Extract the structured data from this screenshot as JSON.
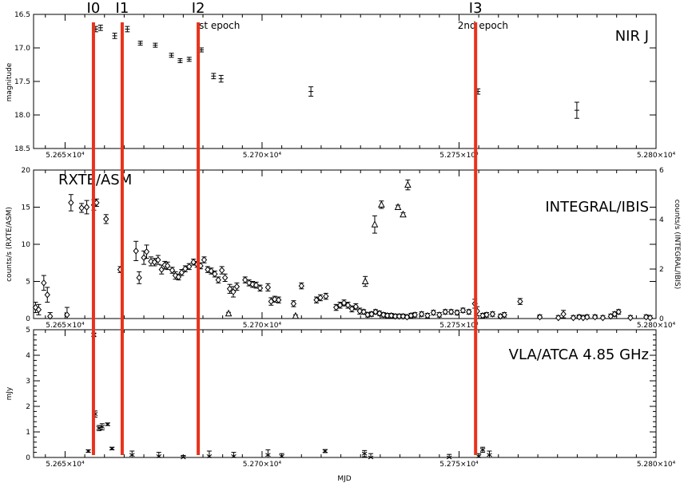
{
  "colors": {
    "marker_line": "#e8321c",
    "axis": "#000000",
    "background": "#ffffff"
  },
  "figure": {
    "markers": [
      {
        "label": "I0",
        "mjd": 52657.2
      },
      {
        "label": "I1",
        "mjd": 52664.5
      },
      {
        "label": "I2",
        "mjd": 52683.8
      },
      {
        "label": "I3",
        "mjd": 52754.2
      }
    ],
    "epoch_labels": [
      {
        "text": "st epoch",
        "mjd": 52684.0
      },
      {
        "text": "2nd epoch",
        "mjd": 52752.0
      }
    ],
    "x_label": "MJD"
  },
  "chart_data": [
    {
      "type": "scatter",
      "panel": "nir",
      "title": "NIR J",
      "ylabel": "magnitude",
      "ylim": [
        18.5,
        16.5
      ],
      "y_inverted": true,
      "xlim": [
        52642,
        52800
      ],
      "x_ticks": [
        "5.265×10⁴",
        "5.270×10⁴",
        "5.275×10⁴",
        "5.280×10⁴"
      ],
      "y_ticks": [
        "16.5",
        "17.0",
        "17.5",
        "18.0",
        "18.5"
      ],
      "series": [
        {
          "marker": "errorbar",
          "points": [
            {
              "x": 52657.8,
              "y": 16.72,
              "err": 0.04
            },
            {
              "x": 52659.0,
              "y": 16.7,
              "err": 0.04
            },
            {
              "x": 52662.6,
              "y": 16.82,
              "err": 0.04
            },
            {
              "x": 52665.8,
              "y": 16.72,
              "err": 0.04
            },
            {
              "x": 52669.1,
              "y": 16.93,
              "err": 0.03
            },
            {
              "x": 52672.9,
              "y": 16.96,
              "err": 0.03
            },
            {
              "x": 52677.0,
              "y": 17.11,
              "err": 0.03
            },
            {
              "x": 52679.2,
              "y": 17.19,
              "err": 0.03
            },
            {
              "x": 52681.5,
              "y": 17.17,
              "err": 0.03
            },
            {
              "x": 52684.6,
              "y": 17.03,
              "err": 0.03
            },
            {
              "x": 52687.7,
              "y": 17.42,
              "err": 0.04
            },
            {
              "x": 52689.6,
              "y": 17.46,
              "err": 0.05
            },
            {
              "x": 52712.4,
              "y": 17.65,
              "err": 0.07
            },
            {
              "x": 52754.8,
              "y": 17.65,
              "err": 0.04
            },
            {
              "x": 52779.9,
              "y": 17.93,
              "err": 0.12
            }
          ]
        }
      ]
    },
    {
      "type": "scatter",
      "panel": "xray",
      "title": "RXTE/ASM",
      "title2": "INTEGRAL/IBIS",
      "ylabel": "counts/s (RXTE/ASM)",
      "y2label": "counts/s (INTEGRAL/IBIS)",
      "ylim": [
        0,
        20
      ],
      "y2lim": [
        0,
        6
      ],
      "xlim": [
        52642,
        52800
      ],
      "x_ticks": [
        "5.265×10⁴",
        "5.270×10⁴",
        "5.275×10⁴",
        "5.280×10⁴"
      ],
      "y_ticks": [
        "0",
        "5",
        "10",
        "15",
        "20"
      ],
      "y2_ticks": [
        "0",
        "2",
        "4",
        "6"
      ],
      "series": [
        {
          "name": "RXTE/ASM",
          "marker": "diamond",
          "points": [
            {
              "x": 52642.5,
              "y": 1.5,
              "err": 0.7
            },
            {
              "x": 52643.3,
              "y": 1.2,
              "err": 0.7
            },
            {
              "x": 52644.6,
              "y": 4.8,
              "err": 1.0
            },
            {
              "x": 52645.5,
              "y": 3.2,
              "err": 1.0
            },
            {
              "x": 52646.2,
              "y": 0.3,
              "err": 0.5
            },
            {
              "x": 52650.5,
              "y": 0.5,
              "err": 1.0
            },
            {
              "x": 52651.5,
              "y": 15.6,
              "err": 1.1
            },
            {
              "x": 52654.2,
              "y": 14.9,
              "err": 0.6
            },
            {
              "x": 52655.5,
              "y": 15.0,
              "err": 0.9
            },
            {
              "x": 52657.3,
              "y": 15.3,
              "err": 0.7
            },
            {
              "x": 52658.0,
              "y": 15.6,
              "err": 0.5
            },
            {
              "x": 52660.4,
              "y": 13.4,
              "err": 0.6
            },
            {
              "x": 52664.0,
              "y": 6.6,
              "err": 0.4
            },
            {
              "x": 52668.0,
              "y": 9.1,
              "err": 1.3
            },
            {
              "x": 52668.8,
              "y": 5.5,
              "err": 0.8
            },
            {
              "x": 52670.0,
              "y": 8.2,
              "err": 0.9
            },
            {
              "x": 52670.7,
              "y": 9.0,
              "err": 0.9
            },
            {
              "x": 52671.8,
              "y": 7.7,
              "err": 0.6
            },
            {
              "x": 52672.7,
              "y": 7.6,
              "err": 0.5
            },
            {
              "x": 52673.6,
              "y": 7.9,
              "err": 0.6
            },
            {
              "x": 52674.5,
              "y": 6.6,
              "err": 0.6
            },
            {
              "x": 52675.3,
              "y": 7.2,
              "err": 0.5
            },
            {
              "x": 52676.0,
              "y": 7.1,
              "err": 0.5
            },
            {
              "x": 52677.2,
              "y": 6.5,
              "err": 0.4
            },
            {
              "x": 52678.0,
              "y": 5.8,
              "err": 0.5
            },
            {
              "x": 52678.8,
              "y": 5.6,
              "err": 0.4
            },
            {
              "x": 52679.6,
              "y": 6.2,
              "err": 0.4
            },
            {
              "x": 52680.5,
              "y": 6.7,
              "err": 0.4
            },
            {
              "x": 52681.5,
              "y": 7.0,
              "err": 0.4
            },
            {
              "x": 52682.6,
              "y": 7.6,
              "err": 0.4
            },
            {
              "x": 52683.5,
              "y": 7.3,
              "err": 0.4
            },
            {
              "x": 52684.4,
              "y": 7.1,
              "err": 0.4
            },
            {
              "x": 52685.3,
              "y": 7.9,
              "err": 0.4
            },
            {
              "x": 52686.2,
              "y": 6.6,
              "err": 0.4
            },
            {
              "x": 52687.1,
              "y": 6.4,
              "err": 0.4
            },
            {
              "x": 52688.0,
              "y": 6.0,
              "err": 0.4
            },
            {
              "x": 52688.9,
              "y": 5.2,
              "err": 0.4
            },
            {
              "x": 52689.8,
              "y": 6.5,
              "err": 0.5
            },
            {
              "x": 52690.6,
              "y": 5.5,
              "err": 0.5
            },
            {
              "x": 52691.8,
              "y": 4.0,
              "err": 0.6
            },
            {
              "x": 52692.7,
              "y": 3.6,
              "err": 0.7
            },
            {
              "x": 52693.6,
              "y": 4.3,
              "err": 0.5
            },
            {
              "x": 52695.7,
              "y": 5.2,
              "err": 0.4
            },
            {
              "x": 52696.7,
              "y": 4.8,
              "err": 0.4
            },
            {
              "x": 52697.6,
              "y": 4.6,
              "err": 0.4
            },
            {
              "x": 52698.5,
              "y": 4.5,
              "err": 0.4
            },
            {
              "x": 52699.5,
              "y": 4.1,
              "err": 0.4
            },
            {
              "x": 52701.5,
              "y": 4.2,
              "err": 0.5
            },
            {
              "x": 52702.3,
              "y": 2.3,
              "err": 0.5
            },
            {
              "x": 52703.2,
              "y": 2.6,
              "err": 0.4
            },
            {
              "x": 52704.2,
              "y": 2.5,
              "err": 0.4
            },
            {
              "x": 52708.0,
              "y": 2.0,
              "err": 0.4
            },
            {
              "x": 52710.0,
              "y": 4.4,
              "err": 0.4
            },
            {
              "x": 52713.8,
              "y": 2.5,
              "err": 0.4
            },
            {
              "x": 52714.8,
              "y": 2.8,
              "err": 0.4
            },
            {
              "x": 52716.2,
              "y": 3.0,
              "err": 0.4
            },
            {
              "x": 52718.8,
              "y": 1.5,
              "err": 0.4
            },
            {
              "x": 52719.8,
              "y": 1.8,
              "err": 0.4
            },
            {
              "x": 52720.8,
              "y": 2.1,
              "err": 0.4
            },
            {
              "x": 52721.8,
              "y": 1.8,
              "err": 0.4
            },
            {
              "x": 52722.8,
              "y": 1.3,
              "err": 0.4
            },
            {
              "x": 52723.8,
              "y": 1.6,
              "err": 0.4
            },
            {
              "x": 52724.8,
              "y": 1.0,
              "err": 0.4
            },
            {
              "x": 52725.8,
              "y": 0.9,
              "err": 0.3
            },
            {
              "x": 52726.8,
              "y": 0.5,
              "err": 0.3
            },
            {
              "x": 52727.8,
              "y": 0.6,
              "err": 0.3
            },
            {
              "x": 52728.8,
              "y": 0.9,
              "err": 0.3
            },
            {
              "x": 52729.8,
              "y": 0.7,
              "err": 0.3
            },
            {
              "x": 52730.8,
              "y": 0.5,
              "err": 0.3
            },
            {
              "x": 52731.8,
              "y": 0.4,
              "err": 0.3
            },
            {
              "x": 52732.8,
              "y": 0.4,
              "err": 0.3
            },
            {
              "x": 52733.8,
              "y": 0.3,
              "err": 0.3
            },
            {
              "x": 52734.8,
              "y": 0.3,
              "err": 0.3
            },
            {
              "x": 52735.8,
              "y": 0.3,
              "err": 0.3
            },
            {
              "x": 52736.8,
              "y": 0.2,
              "err": 0.3
            },
            {
              "x": 52737.8,
              "y": 0.4,
              "err": 0.3
            },
            {
              "x": 52738.8,
              "y": 0.5,
              "err": 0.3
            },
            {
              "x": 52740.5,
              "y": 0.6,
              "err": 0.3
            },
            {
              "x": 52742.0,
              "y": 0.4,
              "err": 0.3
            },
            {
              "x": 52743.5,
              "y": 0.8,
              "err": 0.3
            },
            {
              "x": 52745.0,
              "y": 0.5,
              "err": 0.3
            },
            {
              "x": 52746.5,
              "y": 0.9,
              "err": 0.3
            },
            {
              "x": 52748.0,
              "y": 0.9,
              "err": 0.3
            },
            {
              "x": 52749.5,
              "y": 0.8,
              "err": 0.3
            },
            {
              "x": 52751.0,
              "y": 1.1,
              "err": 0.3
            },
            {
              "x": 52752.5,
              "y": 0.9,
              "err": 0.3
            },
            {
              "x": 52754.0,
              "y": 2.0,
              "err": 0.6
            },
            {
              "x": 52754.6,
              "y": 1.0,
              "err": 0.6
            },
            {
              "x": 52756.0,
              "y": 0.4,
              "err": 0.3
            },
            {
              "x": 52757.0,
              "y": 0.5,
              "err": 0.3
            },
            {
              "x": 52758.5,
              "y": 0.6,
              "err": 0.3
            },
            {
              "x": 52760.5,
              "y": 0.3,
              "err": 0.3
            },
            {
              "x": 52761.5,
              "y": 0.5,
              "err": 0.3
            },
            {
              "x": 52765.5,
              "y": 2.3,
              "err": 0.4
            },
            {
              "x": 52770.5,
              "y": 0.2,
              "err": 0.3
            },
            {
              "x": 52775.2,
              "y": 0.1,
              "err": 0.3
            },
            {
              "x": 52776.5,
              "y": 0.6,
              "err": 0.5
            },
            {
              "x": 52779.0,
              "y": 0.1,
              "err": 0.3
            },
            {
              "x": 52780.5,
              "y": 0.2,
              "err": 0.3
            },
            {
              "x": 52781.5,
              "y": 0.1,
              "err": 0.3
            },
            {
              "x": 52782.5,
              "y": 0.2,
              "err": 0.3
            },
            {
              "x": 52784.5,
              "y": 0.2,
              "err": 0.3
            },
            {
              "x": 52786.5,
              "y": 0.1,
              "err": 0.3
            },
            {
              "x": 52788.5,
              "y": 0.3,
              "err": 0.3
            },
            {
              "x": 52789.5,
              "y": 0.6,
              "err": 0.3
            },
            {
              "x": 52790.5,
              "y": 0.9,
              "err": 0.3
            },
            {
              "x": 52793.5,
              "y": 0.1,
              "err": 0.3
            },
            {
              "x": 52797.5,
              "y": 0.2,
              "err": 0.3
            },
            {
              "x": 52798.5,
              "y": 0.1,
              "err": 0.3
            }
          ]
        },
        {
          "name": "INTEGRAL/IBIS",
          "marker": "triangle",
          "axis": "right",
          "points": [
            {
              "x": 52691.5,
              "y": 0.2,
              "err": 0.05
            },
            {
              "x": 52708.5,
              "y": 0.1,
              "err": 0.05
            },
            {
              "x": 52726.2,
              "y": 1.5,
              "err": 0.2
            },
            {
              "x": 52728.6,
              "y": 3.8,
              "err": 0.35
            },
            {
              "x": 52730.3,
              "y": 4.6,
              "err": 0.15
            },
            {
              "x": 52734.5,
              "y": 4.5,
              "err": 0.08
            },
            {
              "x": 52735.8,
              "y": 4.2,
              "err": 0.08
            },
            {
              "x": 52737.0,
              "y": 5.4,
              "err": 0.2
            }
          ]
        }
      ]
    },
    {
      "type": "scatter",
      "panel": "radio",
      "title": "VLA/ATCA 4.85 GHz",
      "ylabel": "mJy",
      "xlabel": "MJD",
      "ylim": [
        0,
        5
      ],
      "xlim": [
        52642,
        52800
      ],
      "x_ticks": [
        "5.265×10⁴",
        "5.270×10⁴",
        "5.275×10⁴",
        "5.280×10⁴"
      ],
      "y_ticks": [
        "0",
        "1",
        "2",
        "3",
        "4",
        "5"
      ],
      "series": [
        {
          "marker": "errorbar",
          "points": [
            {
              "x": 52655.9,
              "y": 0.25,
              "err": 0.05
            },
            {
              "x": 52657.3,
              "y": 4.8,
              "err": 0.07
            },
            {
              "x": 52657.6,
              "y": 1.7,
              "err": 0.12
            },
            {
              "x": 52658.6,
              "y": 1.15,
              "err": 0.1
            },
            {
              "x": 52659.4,
              "y": 1.2,
              "err": 0.12
            },
            {
              "x": 52660.8,
              "y": 1.3,
              "err": 0.05
            },
            {
              "x": 52661.9,
              "y": 0.35,
              "err": 0.05
            },
            {
              "x": 52667.0,
              "y": 0.1,
              "err": 0.15
            },
            {
              "x": 52673.8,
              "y": 0.05,
              "err": 0.15
            },
            {
              "x": 52680.0,
              "y": 0.0,
              "err": 0.08
            },
            {
              "x": 52686.6,
              "y": 0.05,
              "err": 0.2
            },
            {
              "x": 52692.8,
              "y": 0.05,
              "err": 0.15
            },
            {
              "x": 52701.5,
              "y": 0.1,
              "err": 0.2
            },
            {
              "x": 52705.0,
              "y": 0.05,
              "err": 0.1
            },
            {
              "x": 52716.0,
              "y": 0.25,
              "err": 0.06
            },
            {
              "x": 52726.0,
              "y": 0.15,
              "err": 0.12
            },
            {
              "x": 52727.6,
              "y": 0.0,
              "err": 0.15
            },
            {
              "x": 52747.5,
              "y": 0.0,
              "err": 0.12
            },
            {
              "x": 52755.0,
              "y": 0.05,
              "err": 0.1
            },
            {
              "x": 52756.0,
              "y": 0.3,
              "err": 0.1
            },
            {
              "x": 52757.7,
              "y": 0.1,
              "err": 0.15
            }
          ]
        }
      ]
    }
  ]
}
